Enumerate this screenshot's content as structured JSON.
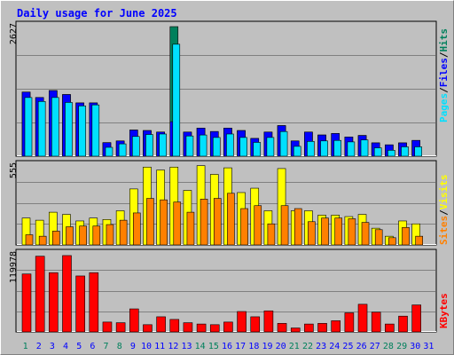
{
  "chart_data": {
    "type": "bar",
    "title": "Daily usage for June 2025",
    "days": [
      "1",
      "2",
      "3",
      "4",
      "5",
      "6",
      "7",
      "8",
      "9",
      "10",
      "11",
      "12",
      "13",
      "14",
      "15",
      "16",
      "17",
      "18",
      "19",
      "20",
      "21",
      "22",
      "23",
      "24",
      "25",
      "26",
      "27",
      "28",
      "29",
      "30",
      "31"
    ],
    "weekend_days": [
      "1",
      "7",
      "8",
      "14",
      "15",
      "21",
      "22",
      "28",
      "29"
    ],
    "panels": [
      {
        "id": "hits-files-pages",
        "max_label": "2627",
        "ylim": [
          0,
          2627
        ],
        "series": [
          {
            "name": "Hits",
            "color": "#00805c",
            "values": [
              1300,
              1190,
              1330,
              1250,
              1080,
              1080,
              275,
              310,
              530,
              520,
              490,
              2627,
              490,
              570,
              500,
              570,
              520,
              360,
              490,
              620,
              310,
              490,
              430,
              460,
              390,
              420,
              270,
              230,
              270,
              320,
              0
            ]
          },
          {
            "name": "Files",
            "color": "#0000ff",
            "values": [
              1300,
              1190,
              1330,
              1250,
              1080,
              1080,
              275,
              310,
              530,
              520,
              490,
              700,
              490,
              570,
              500,
              570,
              520,
              360,
              490,
              620,
              310,
              490,
              430,
              460,
              390,
              420,
              270,
              230,
              270,
              320,
              0
            ]
          },
          {
            "name": "Pages",
            "color": "#00e0ff",
            "values": [
              1190,
              1110,
              1190,
              1090,
              1020,
              1040,
              180,
              250,
              400,
              440,
              450,
              2270,
              410,
              430,
              380,
              450,
              380,
              280,
              380,
              500,
              200,
              300,
              310,
              320,
              290,
              330,
              170,
              120,
              190,
              190,
              0
            ]
          }
        ]
      },
      {
        "id": "visits-sites",
        "max_label": "555",
        "ylim": [
          0,
          555
        ],
        "series": [
          {
            "name": "Visits",
            "color": "#ffff00",
            "values": [
              185,
              170,
              225,
              210,
              165,
              185,
              175,
              235,
              385,
              535,
              515,
              535,
              375,
              545,
              485,
              530,
              360,
              390,
              235,
              525,
              235,
              235,
              205,
              205,
              195,
              210,
              115,
              60,
              165,
              145,
              0
            ]
          },
          {
            "name": "Sites",
            "color": "#ff8000",
            "values": [
              70,
              60,
              95,
              125,
              130,
              130,
              140,
              170,
              220,
              320,
              310,
              295,
              225,
              315,
              320,
              355,
              250,
              270,
              145,
              270,
              250,
              160,
              185,
              185,
              180,
              155,
              105,
              50,
              120,
              60,
              0
            ]
          }
        ]
      },
      {
        "id": "kbytes",
        "max_label": "119978",
        "ylim": [
          0,
          119978
        ],
        "series": [
          {
            "name": "KBytes",
            "color": "#ff0000",
            "values": [
              88000,
              115000,
              90000,
              116000,
              85000,
              90000,
              15000,
              14000,
              35000,
              11000,
              23000,
              19000,
              14000,
              12000,
              11000,
              15000,
              31000,
              23000,
              32000,
              13000,
              6000,
              12000,
              13000,
              17000,
              29000,
              42000,
              30000,
              12000,
              24000,
              41000,
              0
            ]
          }
        ]
      }
    ],
    "legend": {
      "hits": "Hits",
      "files": "Files",
      "pages": "Pages",
      "visits": "Visits",
      "sites": "Sites",
      "kbytes": "KBytes",
      "sep": "/"
    }
  },
  "colors": {
    "background": "#c0c0c0",
    "plot_bg": "#c0c0c0",
    "title": "#0000ff",
    "grid": "#808080",
    "weekday_label": "#0000ff",
    "weekend_label": "#00805c"
  }
}
